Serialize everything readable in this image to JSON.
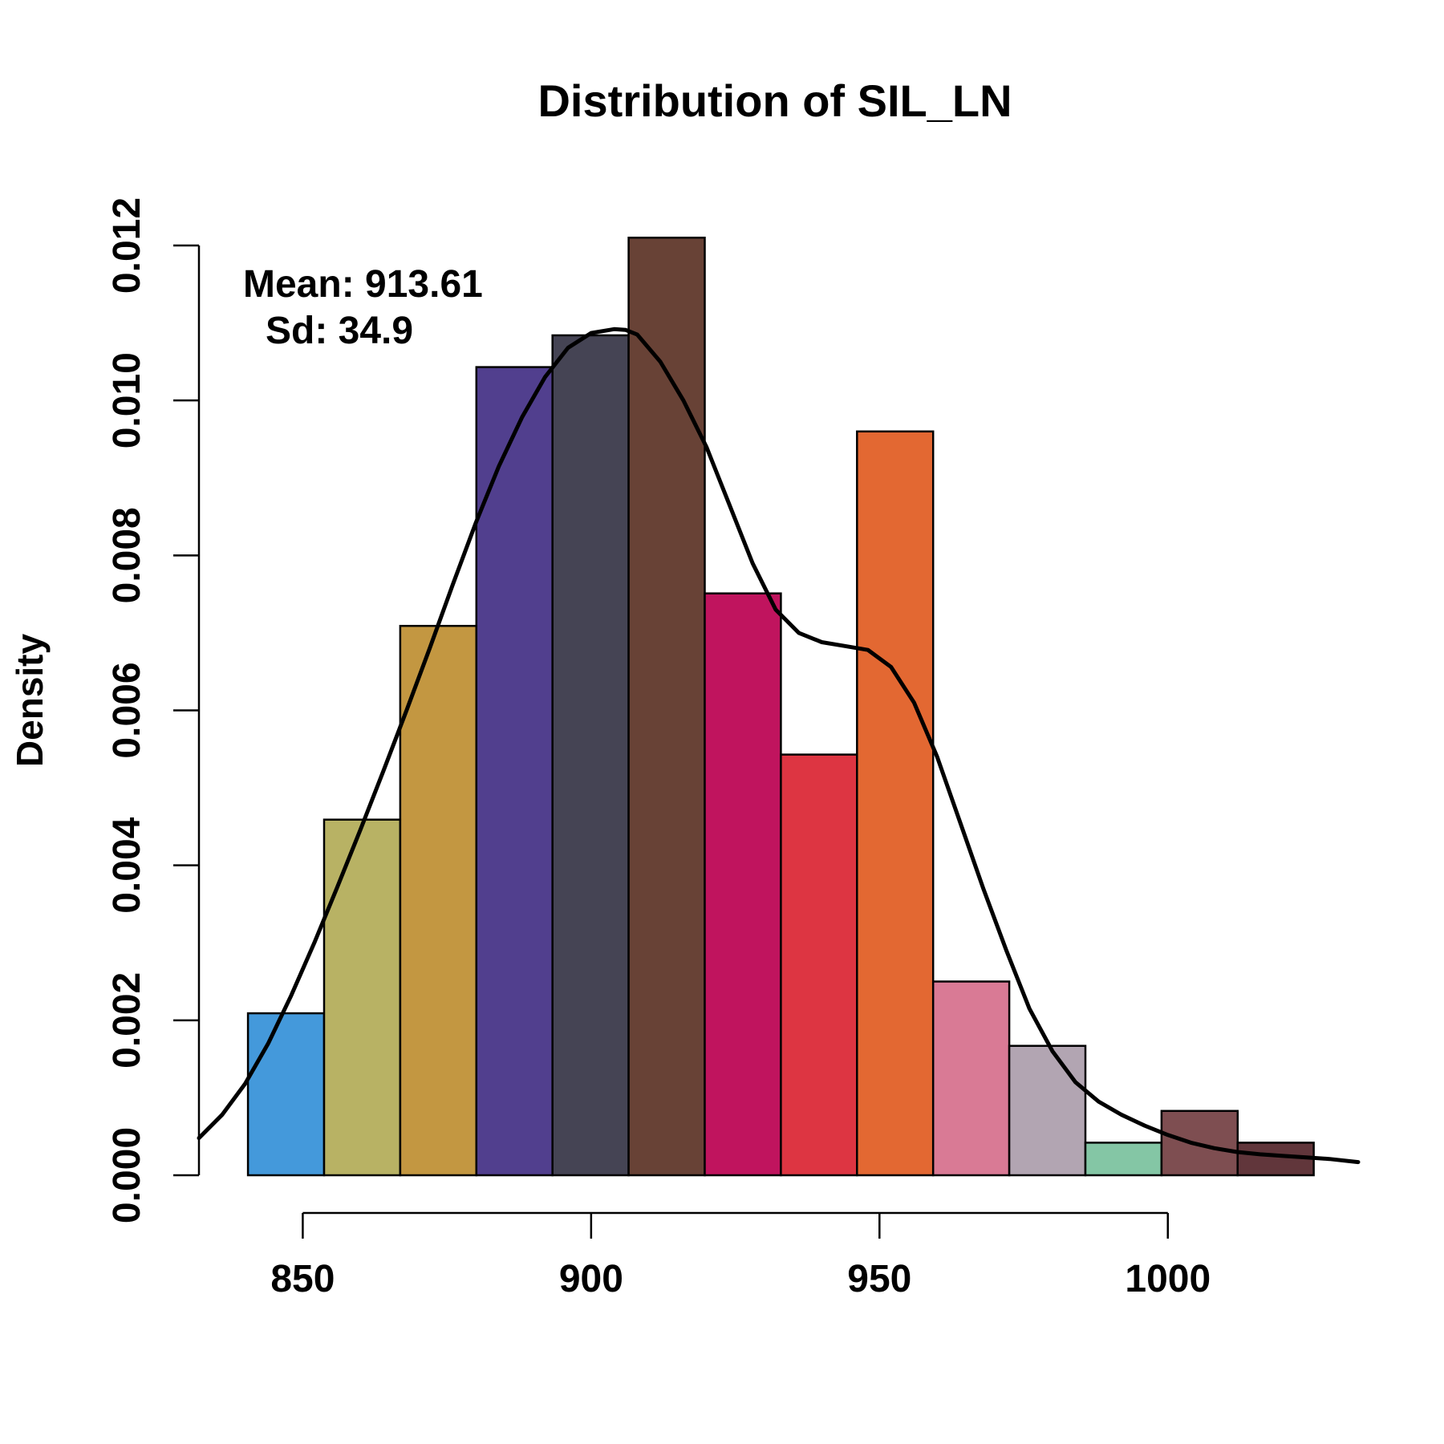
{
  "chart_data": {
    "type": "bar",
    "title": "Distribution of SIL_LN",
    "xlabel": "",
    "ylabel": "Density",
    "xlim": [
      832,
      1033
    ],
    "ylim": [
      0,
      0.012
    ],
    "x_ticks": [
      850,
      900,
      950,
      1000
    ],
    "x_tick_labels": [
      "850",
      "900",
      "950",
      "1000"
    ],
    "y_ticks": [
      0,
      0.002,
      0.004,
      0.006,
      0.008,
      0.01,
      0.012
    ],
    "y_tick_labels": [
      "0.000",
      "0.002",
      "0.004",
      "0.006",
      "0.008",
      "0.010",
      "0.012"
    ],
    "bins": [
      {
        "start": 840.5,
        "end": 853.7,
        "density": 0.00209,
        "color": "#4499DB"
      },
      {
        "start": 853.7,
        "end": 866.9,
        "density": 0.00459,
        "color": "#B8B264"
      },
      {
        "start": 866.9,
        "end": 880.1,
        "density": 0.00709,
        "color": "#C39741"
      },
      {
        "start": 880.1,
        "end": 893.3,
        "density": 0.01043,
        "color": "#513F8E"
      },
      {
        "start": 893.3,
        "end": 906.5,
        "density": 0.01084,
        "color": "#454454"
      },
      {
        "start": 906.5,
        "end": 919.7,
        "density": 0.0121,
        "color": "#684236"
      },
      {
        "start": 919.7,
        "end": 932.9,
        "density": 0.00751,
        "color": "#C0145E"
      },
      {
        "start": 932.9,
        "end": 946.1,
        "density": 0.00543,
        "color": "#DD3542"
      },
      {
        "start": 946.1,
        "end": 959.3,
        "density": 0.0096,
        "color": "#E36832"
      },
      {
        "start": 959.3,
        "end": 972.5,
        "density": 0.0025,
        "color": "#D97A95"
      },
      {
        "start": 972.5,
        "end": 985.7,
        "density": 0.00167,
        "color": "#B2A5B2"
      },
      {
        "start": 985.7,
        "end": 998.9,
        "density": 0.00042,
        "color": "#84C6A5"
      },
      {
        "start": 998.9,
        "end": 1012.1,
        "density": 0.00083,
        "color": "#7E4E51"
      },
      {
        "start": 1012.1,
        "end": 1025.3,
        "density": 0.00042,
        "color": "#61363B"
      }
    ],
    "density_curve": {
      "x": [
        832,
        836,
        840,
        844,
        848,
        852,
        856,
        860,
        864,
        868,
        872,
        876,
        880,
        884,
        888,
        892,
        896,
        900,
        904,
        906,
        908,
        912,
        916,
        920,
        924,
        928,
        932,
        936,
        940,
        944,
        948,
        952,
        956,
        960,
        964,
        968,
        972,
        976,
        980,
        984,
        988,
        992,
        996,
        1000,
        1004,
        1008,
        1012,
        1016,
        1020,
        1024,
        1028,
        1033
      ],
      "y": [
        0.00048,
        0.00078,
        0.00118,
        0.0017,
        0.00232,
        0.003,
        0.00372,
        0.00446,
        0.00522,
        0.006,
        0.0068,
        0.00762,
        0.00842,
        0.00915,
        0.00978,
        0.0103,
        0.01068,
        0.01087,
        0.01092,
        0.01091,
        0.01085,
        0.0105,
        0.01,
        0.0094,
        0.00865,
        0.0079,
        0.0073,
        0.007,
        0.00688,
        0.00683,
        0.00678,
        0.00656,
        0.0061,
        0.0054,
        0.00455,
        0.0037,
        0.0029,
        0.00215,
        0.0016,
        0.0012,
        0.00095,
        0.00078,
        0.00064,
        0.00052,
        0.00042,
        0.00035,
        0.0003,
        0.00027,
        0.00025,
        0.00023,
        0.00021,
        0.00017
      ]
    },
    "annotations": {
      "mean": "Mean: 913.61",
      "sd": "Sd: 34.9"
    },
    "grid": false,
    "legend": "none"
  }
}
